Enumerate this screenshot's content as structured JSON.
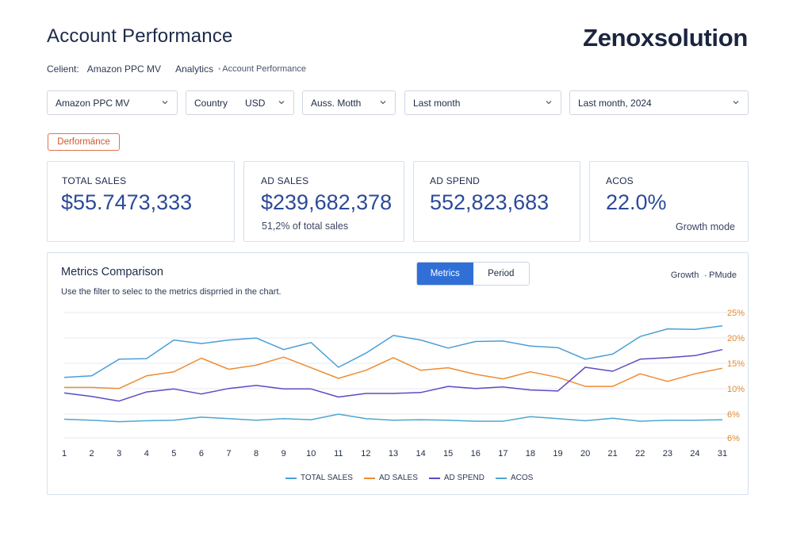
{
  "header": {
    "title": "Account Performance",
    "brand": "Zenoxsolution"
  },
  "breadcrumb": {
    "client_label": "Celient:",
    "client_value": "Amazon PPC MV",
    "analytics": "Analytics",
    "separator": "•",
    "current": "Account Performance"
  },
  "filters": {
    "account": "Amazon PPC MV",
    "country_label": "Country",
    "country_value": "USD",
    "metric": "Auss. Motth",
    "period": "Last month",
    "period_year": "Last month, 2024"
  },
  "badge": "Derformánce",
  "kpis": [
    {
      "label": "TOTAL SALES",
      "value": "$55.7473,333",
      "sub": ""
    },
    {
      "label": "AD SALES",
      "value": "$239,682,378",
      "sub": "51,2% of total sales"
    },
    {
      "label": "AD SPEND",
      "value": "552,823,683",
      "sub": ""
    },
    {
      "label": "ACOS",
      "value": "22.0%",
      "sub_right": "Growth mode"
    }
  ],
  "chart_panel": {
    "title": "Metrics Comparison",
    "description": "Use the filter to selec to the metrics disprried in the chart.",
    "toggle": {
      "metrics": "Metrics",
      "period": "Period",
      "active": "metrics"
    },
    "mode_growth": "Growth",
    "mode_separator": "•",
    "mode_pmode": "PMude"
  },
  "colors": {
    "total_sales": "#4a9fd6",
    "ad_sales": "#ee8c33",
    "ad_spend": "#5b4bc4",
    "acos": "#4ea6d0",
    "accent": "#2f6fd6",
    "grid": "#e6e9ef"
  },
  "chart_data": {
    "type": "line",
    "x": [
      1,
      2,
      3,
      4,
      5,
      6,
      7,
      8,
      9,
      10,
      11,
      12,
      13,
      14,
      15,
      16,
      17,
      18,
      19,
      20,
      21,
      22,
      23,
      24,
      31
    ],
    "x_tick_labels": [
      "1",
      "2",
      "3",
      "4",
      "5",
      "6",
      "7",
      "8",
      "9",
      "10",
      "11",
      "12",
      "13",
      "14",
      "15",
      "16",
      "17",
      "18",
      "19",
      "20",
      "21",
      "22",
      "23",
      "24",
      "31"
    ],
    "y_axis_side": "right",
    "y_tick_labels": [
      "25%",
      "20%",
      "15%",
      "10%",
      "6%",
      "6%"
    ],
    "grid": "horizontal",
    "legend_position": "bottom",
    "series": [
      {
        "name": "TOTAL SALES",
        "color_key": "total_sales",
        "values": [
          12.0,
          12.3,
          15.6,
          15.7,
          19.4,
          18.7,
          19.4,
          19.8,
          17.5,
          18.9,
          14.0,
          16.8,
          20.3,
          19.4,
          17.8,
          19.1,
          19.2,
          18.2,
          17.9,
          15.6,
          16.6,
          20.1,
          21.6,
          21.5,
          22.2
        ]
      },
      {
        "name": "AD SALES",
        "color_key": "ad_sales",
        "values": [
          10.0,
          10.0,
          9.8,
          12.3,
          13.1,
          15.8,
          13.6,
          14.4,
          16.0,
          13.9,
          11.8,
          13.4,
          15.9,
          13.4,
          13.9,
          12.6,
          11.7,
          13.1,
          12.0,
          10.2,
          10.2,
          12.7,
          11.2,
          12.7,
          13.8
        ]
      },
      {
        "name": "AD SPEND",
        "color_key": "ad_spend",
        "values": [
          8.9,
          8.2,
          7.3,
          9.1,
          9.7,
          8.7,
          9.8,
          10.4,
          9.7,
          9.7,
          8.1,
          8.8,
          8.8,
          9.0,
          10.2,
          9.8,
          10.1,
          9.5,
          9.3,
          14.0,
          13.2,
          15.6,
          15.9,
          16.3,
          17.5
        ]
      },
      {
        "name": "ACOS",
        "color_key": "acos",
        "values": [
          3.7,
          3.5,
          3.2,
          3.4,
          3.5,
          4.1,
          3.8,
          3.5,
          3.8,
          3.6,
          4.7,
          3.8,
          3.5,
          3.6,
          3.5,
          3.3,
          3.3,
          4.2,
          3.8,
          3.4,
          3.9,
          3.3,
          3.5,
          3.5,
          3.6
        ]
      }
    ],
    "ylim": [
      0,
      25
    ]
  }
}
